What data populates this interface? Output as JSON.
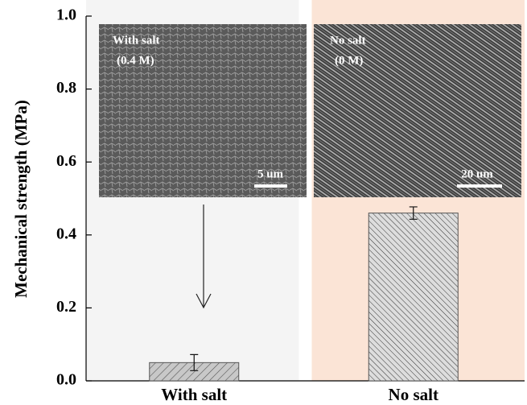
{
  "chart_data": {
    "type": "bar",
    "ylabel": "Mechanical strength (MPa)",
    "categories": [
      "With salt",
      "No salt"
    ],
    "values": [
      0.05,
      0.46
    ],
    "errors": [
      0.022,
      0.017
    ],
    "color": "#555555",
    "background_colors": [
      "#f4f4f4",
      "#fbe4d6"
    ],
    "ylim": [
      0,
      1.0
    ],
    "yticks": [
      {
        "value": 0,
        "label": "0.0"
      },
      0.2,
      0.4,
      0.6,
      0.8,
      {
        "value": 1.0,
        "label": "1.0"
      }
    ],
    "insets": [
      {
        "label": "With salt",
        "sublabel": "(0.4 M)",
        "scale_bar": "5 um"
      },
      {
        "label": "No salt",
        "sublabel": "(0 M)",
        "scale_bar": "20 um"
      }
    ]
  }
}
